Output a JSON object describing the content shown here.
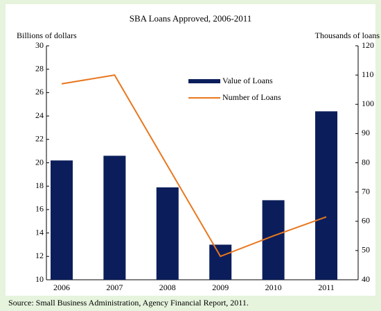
{
  "chart_data": {
    "type": "bar_line",
    "title": "SBA Loans Approved, 2006-2011",
    "y_label": "Billions of dollars",
    "y2_label": "Thousands of loans",
    "source": "Source: Small Business Administration, Agency Financial Report, 2011.",
    "categories": [
      "2006",
      "2007",
      "2008",
      "2009",
      "2010",
      "2011"
    ],
    "series": [
      {
        "name": "Value of Loans",
        "type": "bar",
        "color": "#0b1e5b",
        "axis": "y",
        "values": [
          20.2,
          20.6,
          17.9,
          13.0,
          16.8,
          24.4
        ]
      },
      {
        "name": "Number of Loans",
        "type": "line",
        "color": "#e8771e",
        "axis": "y2",
        "values": [
          107,
          110,
          79,
          48,
          55,
          61.5
        ]
      }
    ],
    "ylim": [
      10,
      30
    ],
    "yticks": [
      10,
      12,
      14,
      16,
      18,
      20,
      22,
      24,
      26,
      28,
      30
    ],
    "y2lim": [
      40,
      120
    ],
    "y2ticks": [
      40,
      50,
      60,
      70,
      80,
      90,
      100,
      110,
      120
    ]
  }
}
